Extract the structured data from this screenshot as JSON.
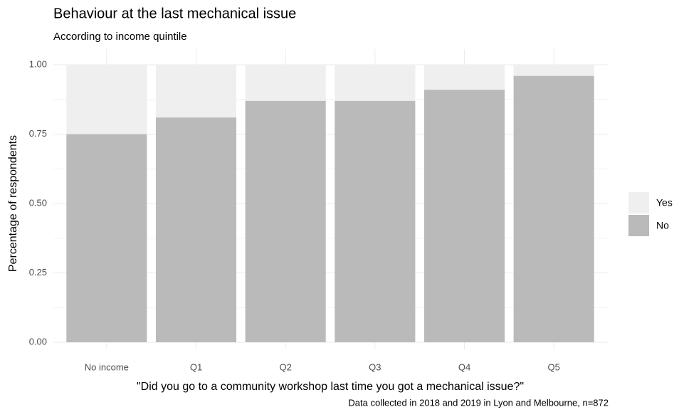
{
  "chart_data": {
    "type": "stacked_bar",
    "title": "Behaviour at the last mechanical issue",
    "subtitle": "According to income quintile",
    "x_label": "\"Did you go to a community workshop last time you got a mechanical issue?\"",
    "y_label": "Percentage of respondents",
    "caption": "Data collected in 2018 and 2019 in Lyon and Melbourne, n=872",
    "categories": [
      "No income",
      "Q1",
      "Q2",
      "Q3",
      "Q4",
      "Q5"
    ],
    "series": [
      {
        "name": "No",
        "color": "#bababa",
        "values": [
          0.75,
          0.81,
          0.87,
          0.87,
          0.91,
          0.96
        ]
      },
      {
        "name": "Yes",
        "color": "#efefef",
        "values": [
          0.25,
          0.19,
          0.13,
          0.13,
          0.09,
          0.04
        ]
      }
    ],
    "ylim": [
      0,
      1
    ],
    "yticks": [
      {
        "value": 0,
        "label": "0.00"
      },
      {
        "value": 0.25,
        "label": "0.25"
      },
      {
        "value": 0.5,
        "label": "0.50"
      },
      {
        "value": 0.75,
        "label": "0.75"
      },
      {
        "value": 1,
        "label": "1.00"
      }
    ],
    "grid": true
  }
}
